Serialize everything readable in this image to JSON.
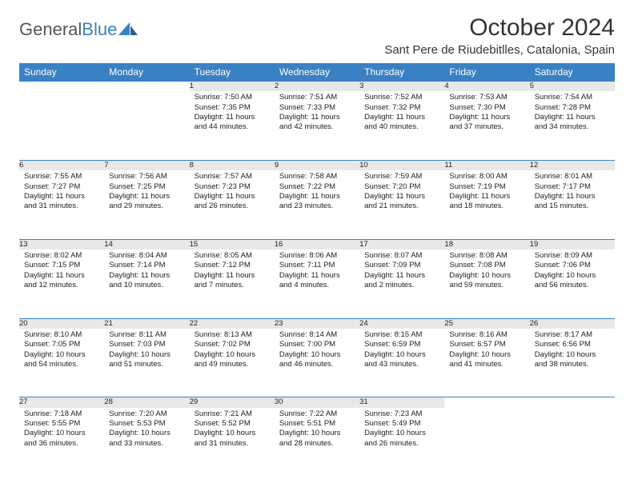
{
  "logo": {
    "text1": "General",
    "text2": "Blue"
  },
  "title": "October 2024",
  "location": "Sant Pere de Riudebitlles, Catalonia, Spain",
  "colors": {
    "header_bg": "#3a81c4",
    "header_text": "#ffffff",
    "daynum_bg": "#e8e8e8",
    "row_divider": "#3a81c4",
    "body_text": "#222222",
    "title_text": "#333333"
  },
  "dayNames": [
    "Sunday",
    "Monday",
    "Tuesday",
    "Wednesday",
    "Thursday",
    "Friday",
    "Saturday"
  ],
  "weeks": [
    [
      null,
      null,
      {
        "n": "1",
        "sr": "7:50 AM",
        "ss": "7:35 PM",
        "dl": "11 hours and 44 minutes."
      },
      {
        "n": "2",
        "sr": "7:51 AM",
        "ss": "7:33 PM",
        "dl": "11 hours and 42 minutes."
      },
      {
        "n": "3",
        "sr": "7:52 AM",
        "ss": "7:32 PM",
        "dl": "11 hours and 40 minutes."
      },
      {
        "n": "4",
        "sr": "7:53 AM",
        "ss": "7:30 PM",
        "dl": "11 hours and 37 minutes."
      },
      {
        "n": "5",
        "sr": "7:54 AM",
        "ss": "7:28 PM",
        "dl": "11 hours and 34 minutes."
      }
    ],
    [
      {
        "n": "6",
        "sr": "7:55 AM",
        "ss": "7:27 PM",
        "dl": "11 hours and 31 minutes."
      },
      {
        "n": "7",
        "sr": "7:56 AM",
        "ss": "7:25 PM",
        "dl": "11 hours and 29 minutes."
      },
      {
        "n": "8",
        "sr": "7:57 AM",
        "ss": "7:23 PM",
        "dl": "11 hours and 26 minutes."
      },
      {
        "n": "9",
        "sr": "7:58 AM",
        "ss": "7:22 PM",
        "dl": "11 hours and 23 minutes."
      },
      {
        "n": "10",
        "sr": "7:59 AM",
        "ss": "7:20 PM",
        "dl": "11 hours and 21 minutes."
      },
      {
        "n": "11",
        "sr": "8:00 AM",
        "ss": "7:19 PM",
        "dl": "11 hours and 18 minutes."
      },
      {
        "n": "12",
        "sr": "8:01 AM",
        "ss": "7:17 PM",
        "dl": "11 hours and 15 minutes."
      }
    ],
    [
      {
        "n": "13",
        "sr": "8:02 AM",
        "ss": "7:15 PM",
        "dl": "11 hours and 12 minutes."
      },
      {
        "n": "14",
        "sr": "8:04 AM",
        "ss": "7:14 PM",
        "dl": "11 hours and 10 minutes."
      },
      {
        "n": "15",
        "sr": "8:05 AM",
        "ss": "7:12 PM",
        "dl": "11 hours and 7 minutes."
      },
      {
        "n": "16",
        "sr": "8:06 AM",
        "ss": "7:11 PM",
        "dl": "11 hours and 4 minutes."
      },
      {
        "n": "17",
        "sr": "8:07 AM",
        "ss": "7:09 PM",
        "dl": "11 hours and 2 minutes."
      },
      {
        "n": "18",
        "sr": "8:08 AM",
        "ss": "7:08 PM",
        "dl": "10 hours and 59 minutes."
      },
      {
        "n": "19",
        "sr": "8:09 AM",
        "ss": "7:06 PM",
        "dl": "10 hours and 56 minutes."
      }
    ],
    [
      {
        "n": "20",
        "sr": "8:10 AM",
        "ss": "7:05 PM",
        "dl": "10 hours and 54 minutes."
      },
      {
        "n": "21",
        "sr": "8:11 AM",
        "ss": "7:03 PM",
        "dl": "10 hours and 51 minutes."
      },
      {
        "n": "22",
        "sr": "8:13 AM",
        "ss": "7:02 PM",
        "dl": "10 hours and 49 minutes."
      },
      {
        "n": "23",
        "sr": "8:14 AM",
        "ss": "7:00 PM",
        "dl": "10 hours and 46 minutes."
      },
      {
        "n": "24",
        "sr": "8:15 AM",
        "ss": "6:59 PM",
        "dl": "10 hours and 43 minutes."
      },
      {
        "n": "25",
        "sr": "8:16 AM",
        "ss": "6:57 PM",
        "dl": "10 hours and 41 minutes."
      },
      {
        "n": "26",
        "sr": "8:17 AM",
        "ss": "6:56 PM",
        "dl": "10 hours and 38 minutes."
      }
    ],
    [
      {
        "n": "27",
        "sr": "7:18 AM",
        "ss": "5:55 PM",
        "dl": "10 hours and 36 minutes."
      },
      {
        "n": "28",
        "sr": "7:20 AM",
        "ss": "5:53 PM",
        "dl": "10 hours and 33 minutes."
      },
      {
        "n": "29",
        "sr": "7:21 AM",
        "ss": "5:52 PM",
        "dl": "10 hours and 31 minutes."
      },
      {
        "n": "30",
        "sr": "7:22 AM",
        "ss": "5:51 PM",
        "dl": "10 hours and 28 minutes."
      },
      {
        "n": "31",
        "sr": "7:23 AM",
        "ss": "5:49 PM",
        "dl": "10 hours and 26 minutes."
      },
      null,
      null
    ]
  ],
  "labels": {
    "sunrise": "Sunrise:",
    "sunset": "Sunset:",
    "daylight": "Daylight:"
  }
}
